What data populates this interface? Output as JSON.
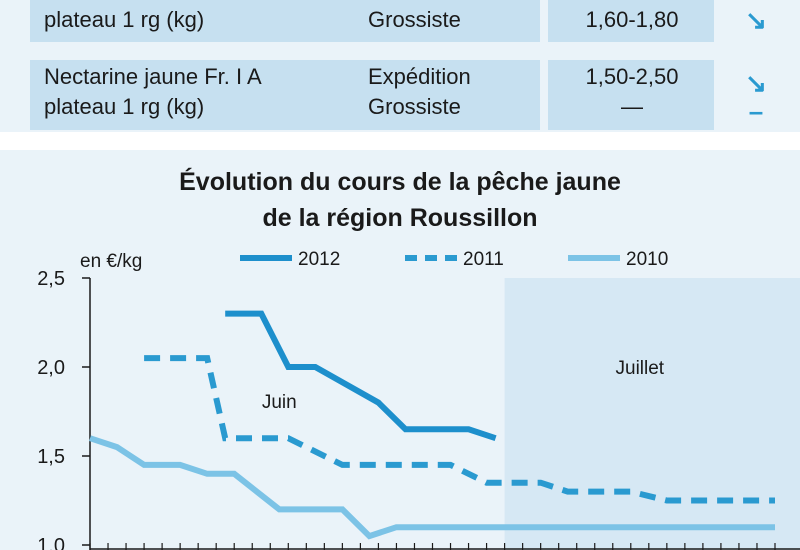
{
  "table": {
    "rows": [
      {
        "product_lines": [
          "plateau 1 rg (kg)"
        ],
        "market_lines": [
          "Grossiste"
        ],
        "price_lines": [
          "1,60-1,80"
        ],
        "trend_lines": [
          "↘"
        ]
      },
      {
        "product_lines": [
          "Nectarine jaune Fr. I A",
          "plateau 1 rg (kg)"
        ],
        "market_lines": [
          "Expédition",
          "Grossiste"
        ],
        "price_lines": [
          "1,50-2,50",
          "—"
        ],
        "trend_lines": [
          "↘",
          "–"
        ]
      }
    ]
  },
  "chart": {
    "title_line1": "Évolution du cours de la pêche jaune",
    "title_line2": "de la région Roussillon"
  },
  "chart_data": {
    "type": "line",
    "title": "Évolution du cours de la pêche jaune de la région Roussillon",
    "ylabel": "en €/kg",
    "xlabel": "",
    "ylim": [
      1.0,
      2.5
    ],
    "yticks": [
      "2,5",
      "2,0",
      "1,5",
      "1,0"
    ],
    "ytick_values": [
      2.5,
      2.0,
      1.5,
      1.0
    ],
    "x_steps": 38,
    "annotations": [
      {
        "text": "Juin",
        "x": 10.5,
        "y": 1.77
      },
      {
        "text": "Juillet",
        "x": 30.5,
        "y": 1.96
      }
    ],
    "shaded_region": {
      "label": "Juillet",
      "x_start": 23,
      "x_end": 38
    },
    "series": [
      {
        "name": "2012",
        "color": "#1d8fcc",
        "dash": "solid",
        "points": [
          [
            7.5,
            2.3
          ],
          [
            9.5,
            2.3
          ],
          [
            11,
            2.0
          ],
          [
            12.5,
            2.0
          ],
          [
            16,
            1.8
          ],
          [
            17.5,
            1.65
          ],
          [
            21,
            1.65
          ],
          [
            22.5,
            1.6
          ]
        ]
      },
      {
        "name": "2011",
        "color": "#2a9ad0",
        "dash": "dashed",
        "points": [
          [
            3,
            2.05
          ],
          [
            6.5,
            2.05
          ],
          [
            7.5,
            1.6
          ],
          [
            11,
            1.6
          ],
          [
            14,
            1.45
          ],
          [
            20,
            1.45
          ],
          [
            22,
            1.35
          ],
          [
            25,
            1.35
          ],
          [
            26.5,
            1.3
          ],
          [
            30,
            1.3
          ],
          [
            32,
            1.25
          ],
          [
            38,
            1.25
          ]
        ]
      },
      {
        "name": "2010",
        "color": "#7cc3e6",
        "dash": "solid",
        "points": [
          [
            0,
            1.6
          ],
          [
            1.5,
            1.55
          ],
          [
            3,
            1.45
          ],
          [
            5,
            1.45
          ],
          [
            6.5,
            1.4
          ],
          [
            8,
            1.4
          ],
          [
            10.5,
            1.2
          ],
          [
            14,
            1.2
          ],
          [
            15.5,
            1.05
          ],
          [
            17,
            1.1
          ],
          [
            38,
            1.1
          ]
        ]
      }
    ]
  }
}
